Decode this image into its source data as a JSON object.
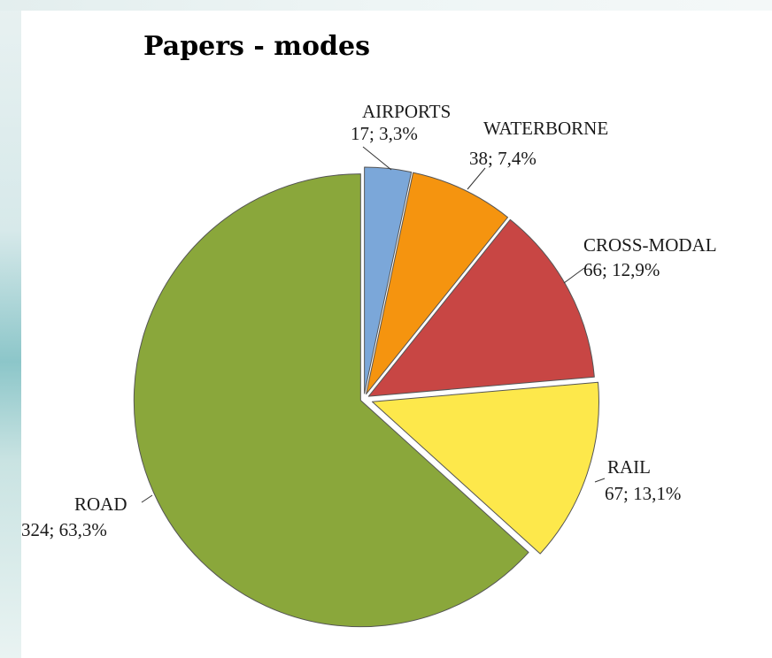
{
  "chart_data": {
    "type": "pie",
    "title": "Papers - modes",
    "slices": [
      {
        "name": "AIRPORTS",
        "value": 17,
        "percent": "3,3%",
        "color": "#7ba7d9",
        "label_line1": "AIRPORTS",
        "label_line2": "17; 3,3%"
      },
      {
        "name": "WATERBORNE",
        "value": 38,
        "percent": "7,4%",
        "color": "#f5940f",
        "label_line1": "WATERBORNE",
        "label_line2": "38; 7,4%"
      },
      {
        "name": "CROSS-MODAL",
        "value": 66,
        "percent": "12,9%",
        "color": "#c84644",
        "label_line1": "CROSS-MODAL",
        "label_line2": "66; 12,9%"
      },
      {
        "name": "RAIL",
        "value": 67,
        "percent": "13,1%",
        "color": "#fde84b",
        "label_line1": "RAIL",
        "label_line2": "67; 13,1%"
      },
      {
        "name": "ROAD",
        "value": 324,
        "percent": "63,3%",
        "color": "#8aa73b",
        "label_line1": "ROAD",
        "label_line2": "324; 63,3%"
      }
    ],
    "start_angle_deg": 0,
    "direction": "clockwise",
    "exploded": true,
    "legend": "none"
  }
}
